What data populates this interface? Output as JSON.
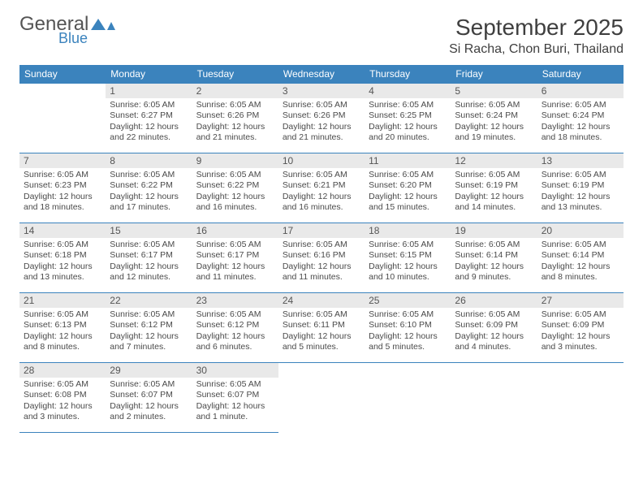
{
  "logo": {
    "word1": "General",
    "word2": "Blue"
  },
  "title": "September 2025",
  "location": "Si Racha, Chon Buri, Thailand",
  "weekdays": [
    "Sunday",
    "Monday",
    "Tuesday",
    "Wednesday",
    "Thursday",
    "Friday",
    "Saturday"
  ],
  "colors": {
    "header_bg": "#3b83bd",
    "header_text": "#ffffff",
    "daynum_bg": "#e9e9e9",
    "daynum_text": "#555555",
    "rule": "#3b83bd",
    "body_text": "#4a4a4a",
    "title_text": "#3f3f3f"
  },
  "fonts": {
    "title_size": 28,
    "subtitle_size": 16,
    "header_size": 12,
    "daynum_size": 12,
    "cell_size": 10.5
  },
  "layout": {
    "cols": 7,
    "rows": 5,
    "first_weekday_index": 1,
    "days_in_month": 30
  },
  "days": {
    "1": {
      "sunrise": "6:05 AM",
      "sunset": "6:27 PM",
      "daylight": "12 hours and 22 minutes."
    },
    "2": {
      "sunrise": "6:05 AM",
      "sunset": "6:26 PM",
      "daylight": "12 hours and 21 minutes."
    },
    "3": {
      "sunrise": "6:05 AM",
      "sunset": "6:26 PM",
      "daylight": "12 hours and 21 minutes."
    },
    "4": {
      "sunrise": "6:05 AM",
      "sunset": "6:25 PM",
      "daylight": "12 hours and 20 minutes."
    },
    "5": {
      "sunrise": "6:05 AM",
      "sunset": "6:24 PM",
      "daylight": "12 hours and 19 minutes."
    },
    "6": {
      "sunrise": "6:05 AM",
      "sunset": "6:24 PM",
      "daylight": "12 hours and 18 minutes."
    },
    "7": {
      "sunrise": "6:05 AM",
      "sunset": "6:23 PM",
      "daylight": "12 hours and 18 minutes."
    },
    "8": {
      "sunrise": "6:05 AM",
      "sunset": "6:22 PM",
      "daylight": "12 hours and 17 minutes."
    },
    "9": {
      "sunrise": "6:05 AM",
      "sunset": "6:22 PM",
      "daylight": "12 hours and 16 minutes."
    },
    "10": {
      "sunrise": "6:05 AM",
      "sunset": "6:21 PM",
      "daylight": "12 hours and 16 minutes."
    },
    "11": {
      "sunrise": "6:05 AM",
      "sunset": "6:20 PM",
      "daylight": "12 hours and 15 minutes."
    },
    "12": {
      "sunrise": "6:05 AM",
      "sunset": "6:19 PM",
      "daylight": "12 hours and 14 minutes."
    },
    "13": {
      "sunrise": "6:05 AM",
      "sunset": "6:19 PM",
      "daylight": "12 hours and 13 minutes."
    },
    "14": {
      "sunrise": "6:05 AM",
      "sunset": "6:18 PM",
      "daylight": "12 hours and 13 minutes."
    },
    "15": {
      "sunrise": "6:05 AM",
      "sunset": "6:17 PM",
      "daylight": "12 hours and 12 minutes."
    },
    "16": {
      "sunrise": "6:05 AM",
      "sunset": "6:17 PM",
      "daylight": "12 hours and 11 minutes."
    },
    "17": {
      "sunrise": "6:05 AM",
      "sunset": "6:16 PM",
      "daylight": "12 hours and 11 minutes."
    },
    "18": {
      "sunrise": "6:05 AM",
      "sunset": "6:15 PM",
      "daylight": "12 hours and 10 minutes."
    },
    "19": {
      "sunrise": "6:05 AM",
      "sunset": "6:14 PM",
      "daylight": "12 hours and 9 minutes."
    },
    "20": {
      "sunrise": "6:05 AM",
      "sunset": "6:14 PM",
      "daylight": "12 hours and 8 minutes."
    },
    "21": {
      "sunrise": "6:05 AM",
      "sunset": "6:13 PM",
      "daylight": "12 hours and 8 minutes."
    },
    "22": {
      "sunrise": "6:05 AM",
      "sunset": "6:12 PM",
      "daylight": "12 hours and 7 minutes."
    },
    "23": {
      "sunrise": "6:05 AM",
      "sunset": "6:12 PM",
      "daylight": "12 hours and 6 minutes."
    },
    "24": {
      "sunrise": "6:05 AM",
      "sunset": "6:11 PM",
      "daylight": "12 hours and 5 minutes."
    },
    "25": {
      "sunrise": "6:05 AM",
      "sunset": "6:10 PM",
      "daylight": "12 hours and 5 minutes."
    },
    "26": {
      "sunrise": "6:05 AM",
      "sunset": "6:09 PM",
      "daylight": "12 hours and 4 minutes."
    },
    "27": {
      "sunrise": "6:05 AM",
      "sunset": "6:09 PM",
      "daylight": "12 hours and 3 minutes."
    },
    "28": {
      "sunrise": "6:05 AM",
      "sunset": "6:08 PM",
      "daylight": "12 hours and 3 minutes."
    },
    "29": {
      "sunrise": "6:05 AM",
      "sunset": "6:07 PM",
      "daylight": "12 hours and 2 minutes."
    },
    "30": {
      "sunrise": "6:05 AM",
      "sunset": "6:07 PM",
      "daylight": "12 hours and 1 minute."
    }
  },
  "labels": {
    "sunrise": "Sunrise: ",
    "sunset": "Sunset: ",
    "daylight": "Daylight: "
  }
}
